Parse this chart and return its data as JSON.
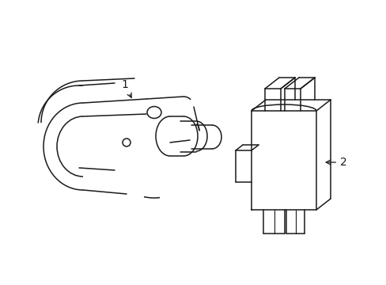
{
  "bg_color": "#ffffff",
  "line_color": "#1a1a1a",
  "line_width": 1.1,
  "fig_width": 4.89,
  "fig_height": 3.6,
  "dpi": 100,
  "label1_text": "1",
  "label2_text": "2"
}
